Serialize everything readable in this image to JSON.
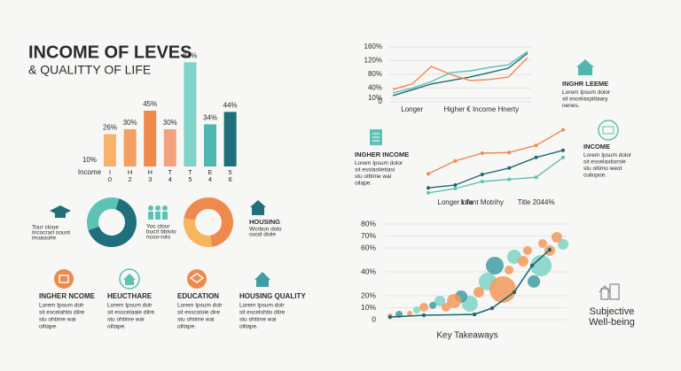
{
  "title": "INCOME OF LEVES",
  "subtitle": "& QUALITTY OF LIFE",
  "chart_data": [
    {
      "type": "bar",
      "annotation": "10%",
      "xlabel": "Income",
      "categories": [
        "I",
        "H",
        "H",
        "T",
        "T",
        "E",
        "5"
      ],
      "category_numbers": [
        "0",
        "2",
        "3",
        "4",
        "5",
        "4",
        "6"
      ],
      "values": [
        26,
        30,
        45,
        30,
        84,
        34,
        44
      ],
      "value_labels": [
        "26%",
        "30%",
        "45%",
        "30%",
        "84%",
        "34%",
        "44%"
      ],
      "colors": [
        "#f7b26b",
        "#f4a062",
        "#f08a4b",
        "#f2a27e",
        "#7fd3c7",
        "#4fb7b0",
        "#1f6f7c"
      ]
    },
    {
      "type": "pie",
      "values": [
        65,
        35
      ],
      "colors": [
        "#1f6f7c",
        "#5cc2b4"
      ]
    },
    {
      "type": "pie",
      "values": [
        70,
        30
      ],
      "colors": [
        "#ee8a4e",
        "#f7b65e"
      ]
    },
    {
      "type": "line",
      "categories": [
        null,
        "Longer",
        null,
        null,
        "Higher € Income",
        null,
        "Hnerty",
        null
      ],
      "ylim": [
        0,
        160
      ],
      "yticks": [
        {
          "value": 160,
          "label": "160%"
        },
        {
          "value": 120,
          "label": "120%"
        },
        {
          "value": 80,
          "label": "80%"
        },
        {
          "value": 40,
          "label": "40%"
        },
        {
          "value": 10,
          "label": "10%"
        },
        0
      ],
      "grid": true,
      "series": [
        {
          "color": "#1d6a76",
          "values": [
            18,
            35,
            52,
            62,
            72,
            85,
            98,
            142
          ]
        },
        {
          "color": "#ee8a4e",
          "values": [
            36,
            52,
            103,
            80,
            62,
            65,
            72,
            129
          ]
        },
        {
          "color": "#5cc2b4",
          "values": [
            26,
            40,
            59,
            85,
            90,
            100,
            108,
            147
          ]
        }
      ]
    },
    {
      "type": "line",
      "categories": [
        null,
        "Longer Life",
        "Infant Motrihy",
        null,
        "Title 2044%",
        null
      ],
      "series": [
        {
          "color": "#ee8a4e",
          "values": [
            36,
            54,
            65,
            66,
            76,
            98
          ]
        },
        {
          "color": "#1d6a76",
          "values": [
            16,
            20,
            35,
            44,
            59,
            69
          ]
        },
        {
          "color": "#5cc2b4",
          "values": [
            9,
            15,
            25,
            28,
            31,
            59
          ]
        }
      ]
    },
    {
      "type": "bubble",
      "xlabel": "Key Takeaways",
      "ylim": [
        0,
        80
      ],
      "yticks": [
        {
          "value": 70,
          "label": "70%"
        },
        {
          "value": 60,
          "label": "60%"
        },
        {
          "value": 80,
          "label": "80%"
        },
        {
          "value": 40,
          "label": "40%"
        },
        {
          "value": 20,
          "label": "20%"
        },
        {
          "value": 10,
          "label": "10%"
        },
        0
      ],
      "grid": true,
      "series": [
        {
          "color": "#7fd3c7",
          "x": [
            17.1,
            29.8,
            46.3,
            56.1,
            70.7,
            85.4,
            97.6
          ],
          "values": [
            8.1,
            15.6,
            13.3,
            31.9,
            52.6,
            45.2,
            63
          ],
          "sizes": [
            4,
            6,
            9,
            10,
            8,
            12,
            6
          ]
        },
        {
          "color": "#3f9ea3",
          "x": [
            7.3,
            25.9,
            41.5,
            60,
            81.5
          ],
          "values": [
            4.4,
            11.9,
            19.3,
            45.2,
            31.9
          ],
          "sizes": [
            4,
            4,
            7,
            10,
            7
          ]
        },
        {
          "color": "#f29a5c",
          "x": [
            2.4,
            13.2,
            21,
            33.2,
            37.6,
            51.2,
            64.4,
            67.8,
            75.6,
            78,
            86.3,
            90.2,
            94.1
          ],
          "values": [
            3,
            5.2,
            10.4,
            10.4,
            15.6,
            23,
            25.2,
            41.5,
            48.9,
            57.8,
            63.7,
            57.8,
            68.9
          ],
          "sizes": [
            3,
            3,
            5,
            5,
            8,
            6,
            15,
            5,
            6,
            5,
            5,
            6,
            6
          ]
        },
        {
          "type": "line",
          "color": "#1d6a76",
          "x": [
            2.4,
            21,
            48.8,
            58.5,
            70.7,
            80.5,
            90.2
          ],
          "values": [
            2.2,
            3.7,
            4.4,
            9.6,
            23,
            45.2,
            58.5
          ]
        }
      ]
    }
  ],
  "blocks": [
    {
      "lines": [
        "Tour cloue",
        "Incocrarl oount",
        "moaoorle"
      ]
    },
    {
      "lines": [
        "Yoc clour",
        "bucrt bbiolo",
        "ncoo-rolo"
      ]
    },
    {
      "title": "HOUSING",
      "lines": [
        "Wcrbon dolo",
        "ouod doiie"
      ]
    }
  ],
  "features": [
    {
      "title": "INGHER NCOME",
      "lines": [
        "Lorem Ipsum dolr",
        "sit escelahtis dilre",
        "stu ohtime wai",
        "oiltape."
      ]
    },
    {
      "title": "HEUCTHARE",
      "lines": [
        "Lorem Ipsum dolr",
        "sit esscelaale dilre",
        "stu ohtime wai",
        "oiltape."
      ]
    },
    {
      "title": "EDUCATION",
      "lines": [
        "Lorem Ipsum dolr",
        "sit esscoloie dire",
        "stu ohtime wai",
        "oiltape."
      ]
    },
    {
      "title": "HOUSING QUALITY",
      "lines": [
        "Lorem Ipsum dolr",
        "sit escelohtis dilre",
        "stu ohtime wai",
        "oiltape."
      ]
    }
  ],
  "notes": [
    {
      "title": "INGHR LEEME",
      "lines": [
        "Lorem Ipsum dolor",
        "sit escelaxpittaary",
        "nenes."
      ]
    },
    {
      "title": "INGHER INCOME",
      "lines": [
        "Lorem Ipsum dolor",
        "sit esslastietiasi",
        "stu olttime wai",
        "oilape."
      ]
    },
    {
      "title": "INCOME",
      "lines": [
        "Lorem Ipsum dolor",
        "sit esselaxtiorsle",
        "stu oltimo weot",
        "cuilopoe."
      ]
    }
  ],
  "side_label": [
    "Subjective",
    "Well-being"
  ]
}
